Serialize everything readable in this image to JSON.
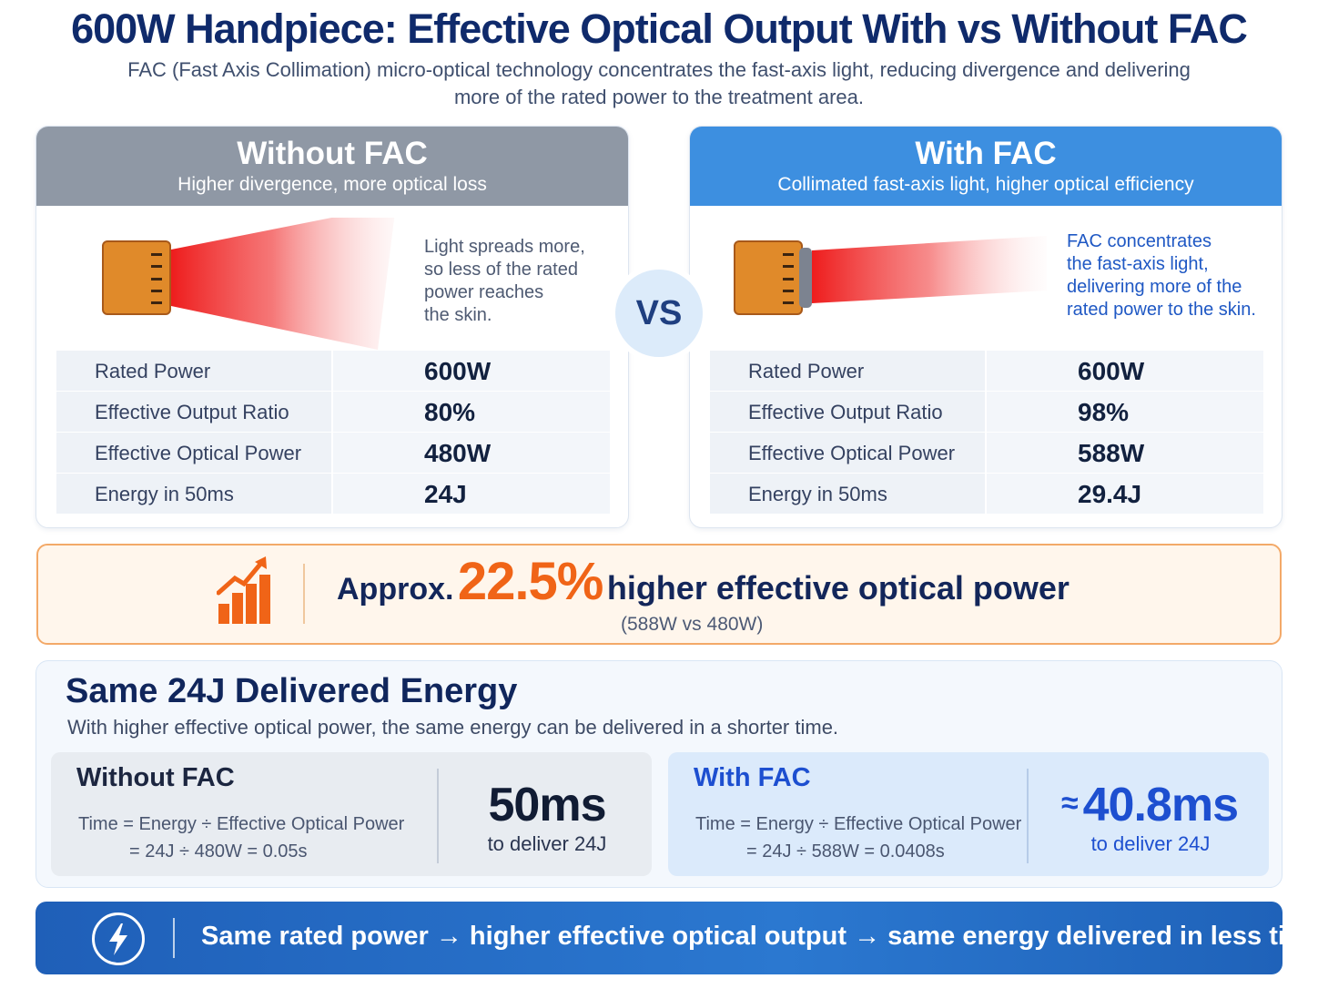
{
  "header": {
    "title": "600W Handpiece: Effective Optical Output With vs Without FAC",
    "subtitle": "FAC (Fast Axis Collimation) micro-optical technology concentrates the fast-axis light, reducing divergence and delivering more of the rated power to the treatment area."
  },
  "vs_label": "VS",
  "without_fac": {
    "title": "Without FAC",
    "subtitle": "Higher divergence, more optical loss",
    "beam_text": [
      "Light spreads more,",
      "so less of the rated",
      "power reaches",
      "the skin."
    ],
    "rows": [
      {
        "label": "Rated Power",
        "value": "600W"
      },
      {
        "label": "Effective Output Ratio",
        "value": "80%"
      },
      {
        "label": "Effective Optical Power",
        "value": "480W"
      },
      {
        "label": "Energy in 50ms",
        "value": "24J"
      }
    ]
  },
  "with_fac": {
    "title": "With FAC",
    "subtitle": "Collimated fast-axis light, higher optical efficiency",
    "beam_text": [
      "FAC concentrates",
      "the fast-axis light,",
      "delivering more of the",
      "rated power to the skin."
    ],
    "rows": [
      {
        "label": "Rated Power",
        "value": "600W"
      },
      {
        "label": "Effective Output Ratio",
        "value": "98%"
      },
      {
        "label": "Effective Optical Power",
        "value": "588W"
      },
      {
        "label": "Energy in 50ms",
        "value": "29.4J"
      }
    ]
  },
  "highlight": {
    "prefix": "Approx.",
    "percent": "22.5%",
    "suffix": "higher effective optical power",
    "note": "(588W vs 480W)"
  },
  "energy": {
    "title": "Same 24J Delivered Energy",
    "subtitle": "With higher effective optical power, the same energy can be delivered in a shorter time.",
    "without": {
      "title": "Without FAC",
      "formula_1": "Time = Energy ÷ Effective Optical Power",
      "formula_2": "= 24J ÷ 480W = 0.05s",
      "value": "50ms",
      "caption": "to deliver 24J"
    },
    "with": {
      "title": "With FAC",
      "formula_1": "Time = Energy ÷ Effective Optical Power",
      "formula_2": "= 24J ÷ 588W = 0.0408s",
      "approx": "≈",
      "value": "40.8ms",
      "caption": "to deliver 24J"
    }
  },
  "banner": {
    "text": "Same rated power → higher effective optical output → same energy delivered in less time."
  },
  "colors": {
    "title_navy": "#0f2a6b",
    "without_header_gray": "#8f98a5",
    "with_header_blue": "#3d8fe0",
    "accent_orange": "#f06417",
    "laser_red": "#ee1d1d",
    "chip_orange": "#e08a2a",
    "banner_blue": "#1f5fb8"
  },
  "icons": [
    "laser-chip-icon",
    "fac-lens-icon",
    "bar-chart-growth-icon",
    "lightning-bolt-icon"
  ]
}
